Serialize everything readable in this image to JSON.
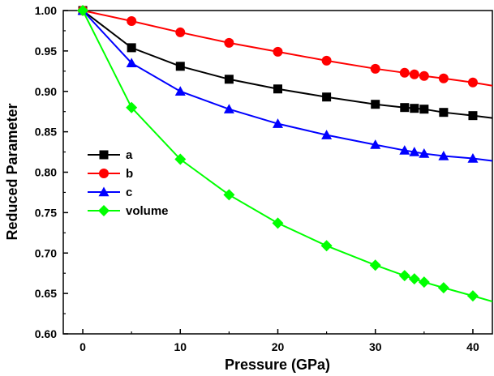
{
  "chart_data": {
    "type": "line",
    "title": "",
    "xlabel": "Pressure (GPa)",
    "ylabel": "Reduced Parameter",
    "xlim": [
      -2,
      42
    ],
    "ylim": [
      0.6,
      1.0
    ],
    "x_ticks": [
      0,
      10,
      20,
      30,
      40
    ],
    "y_ticks": [
      0.6,
      0.65,
      0.7,
      0.75,
      0.8,
      0.85,
      0.9,
      0.95,
      1.0
    ],
    "x_tick_labels": [
      "0",
      "10",
      "20",
      "30",
      "40"
    ],
    "y_tick_labels": [
      "0.60",
      "0.65",
      "0.70",
      "0.75",
      "0.80",
      "0.85",
      "0.90",
      "0.95",
      "1.00"
    ],
    "grid": false,
    "legend_position": "middle-left",
    "series": [
      {
        "name": "a",
        "color": "#000000",
        "marker": "square",
        "x": [
          0,
          5,
          10,
          15,
          20,
          25,
          30,
          33,
          34,
          35,
          37,
          40,
          42
        ],
        "y": [
          1.0,
          0.954,
          0.931,
          0.915,
          0.903,
          0.893,
          0.884,
          0.88,
          0.879,
          0.878,
          0.874,
          0.87,
          0.867
        ],
        "show_marker": [
          true,
          true,
          true,
          true,
          true,
          true,
          true,
          true,
          true,
          true,
          true,
          true,
          false
        ]
      },
      {
        "name": "b",
        "color": "#ff0000",
        "marker": "circle",
        "x": [
          0,
          5,
          10,
          15,
          20,
          25,
          30,
          33,
          34,
          35,
          37,
          40,
          42
        ],
        "y": [
          1.0,
          0.987,
          0.973,
          0.96,
          0.949,
          0.938,
          0.928,
          0.923,
          0.921,
          0.919,
          0.916,
          0.911,
          0.907
        ],
        "show_marker": [
          true,
          true,
          true,
          true,
          true,
          true,
          true,
          true,
          true,
          true,
          true,
          true,
          false
        ]
      },
      {
        "name": "c",
        "color": "#0000ff",
        "marker": "triangle",
        "x": [
          0,
          5,
          10,
          15,
          20,
          25,
          30,
          33,
          34,
          35,
          37,
          40,
          42
        ],
        "y": [
          1.0,
          0.935,
          0.9,
          0.878,
          0.86,
          0.846,
          0.834,
          0.827,
          0.825,
          0.823,
          0.82,
          0.817,
          0.814
        ],
        "show_marker": [
          true,
          true,
          true,
          true,
          true,
          true,
          true,
          true,
          true,
          true,
          true,
          true,
          false
        ]
      },
      {
        "name": "volume",
        "color": "#00ff00",
        "marker": "diamond",
        "x": [
          0,
          5,
          10,
          15,
          20,
          25,
          30,
          33,
          34,
          35,
          37,
          40,
          42
        ],
        "y": [
          1.0,
          0.88,
          0.816,
          0.772,
          0.737,
          0.709,
          0.685,
          0.672,
          0.668,
          0.664,
          0.657,
          0.647,
          0.64
        ],
        "show_marker": [
          true,
          true,
          true,
          true,
          true,
          true,
          true,
          true,
          true,
          true,
          true,
          true,
          false
        ]
      }
    ]
  }
}
